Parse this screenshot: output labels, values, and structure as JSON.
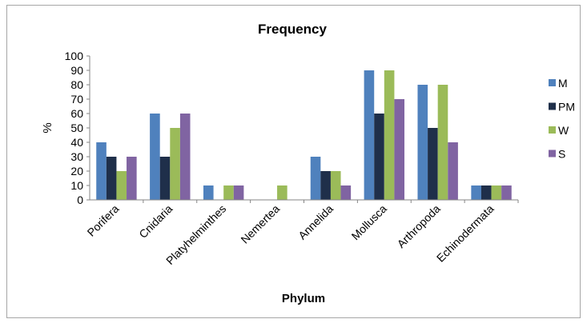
{
  "chart_data": {
    "type": "bar",
    "title": "Frequency",
    "xlabel": "Phylum",
    "ylabel": "%",
    "ylim": [
      0,
      100
    ],
    "yticks": [
      0,
      10,
      20,
      30,
      40,
      50,
      60,
      70,
      80,
      90,
      100
    ],
    "grid": false,
    "legend_position": "right",
    "categories": [
      "Porifera",
      "Cnidaria",
      "Platyhelminthes",
      "Nemertea",
      "Annelida",
      "Mollusca",
      "Arthropoda",
      "Echinodermata"
    ],
    "series": [
      {
        "name": "M",
        "color": "#4F81BD",
        "values": [
          40,
          60,
          10,
          0,
          30,
          90,
          80,
          10
        ]
      },
      {
        "name": "PM",
        "color": "#1F2F4A",
        "values": [
          30,
          30,
          0,
          0,
          20,
          60,
          50,
          10
        ]
      },
      {
        "name": "W",
        "color": "#9BBB59",
        "values": [
          20,
          50,
          10,
          10,
          20,
          90,
          80,
          10
        ]
      },
      {
        "name": "S",
        "color": "#8064A2",
        "values": [
          30,
          60,
          10,
          0,
          10,
          70,
          40,
          10
        ]
      }
    ]
  }
}
